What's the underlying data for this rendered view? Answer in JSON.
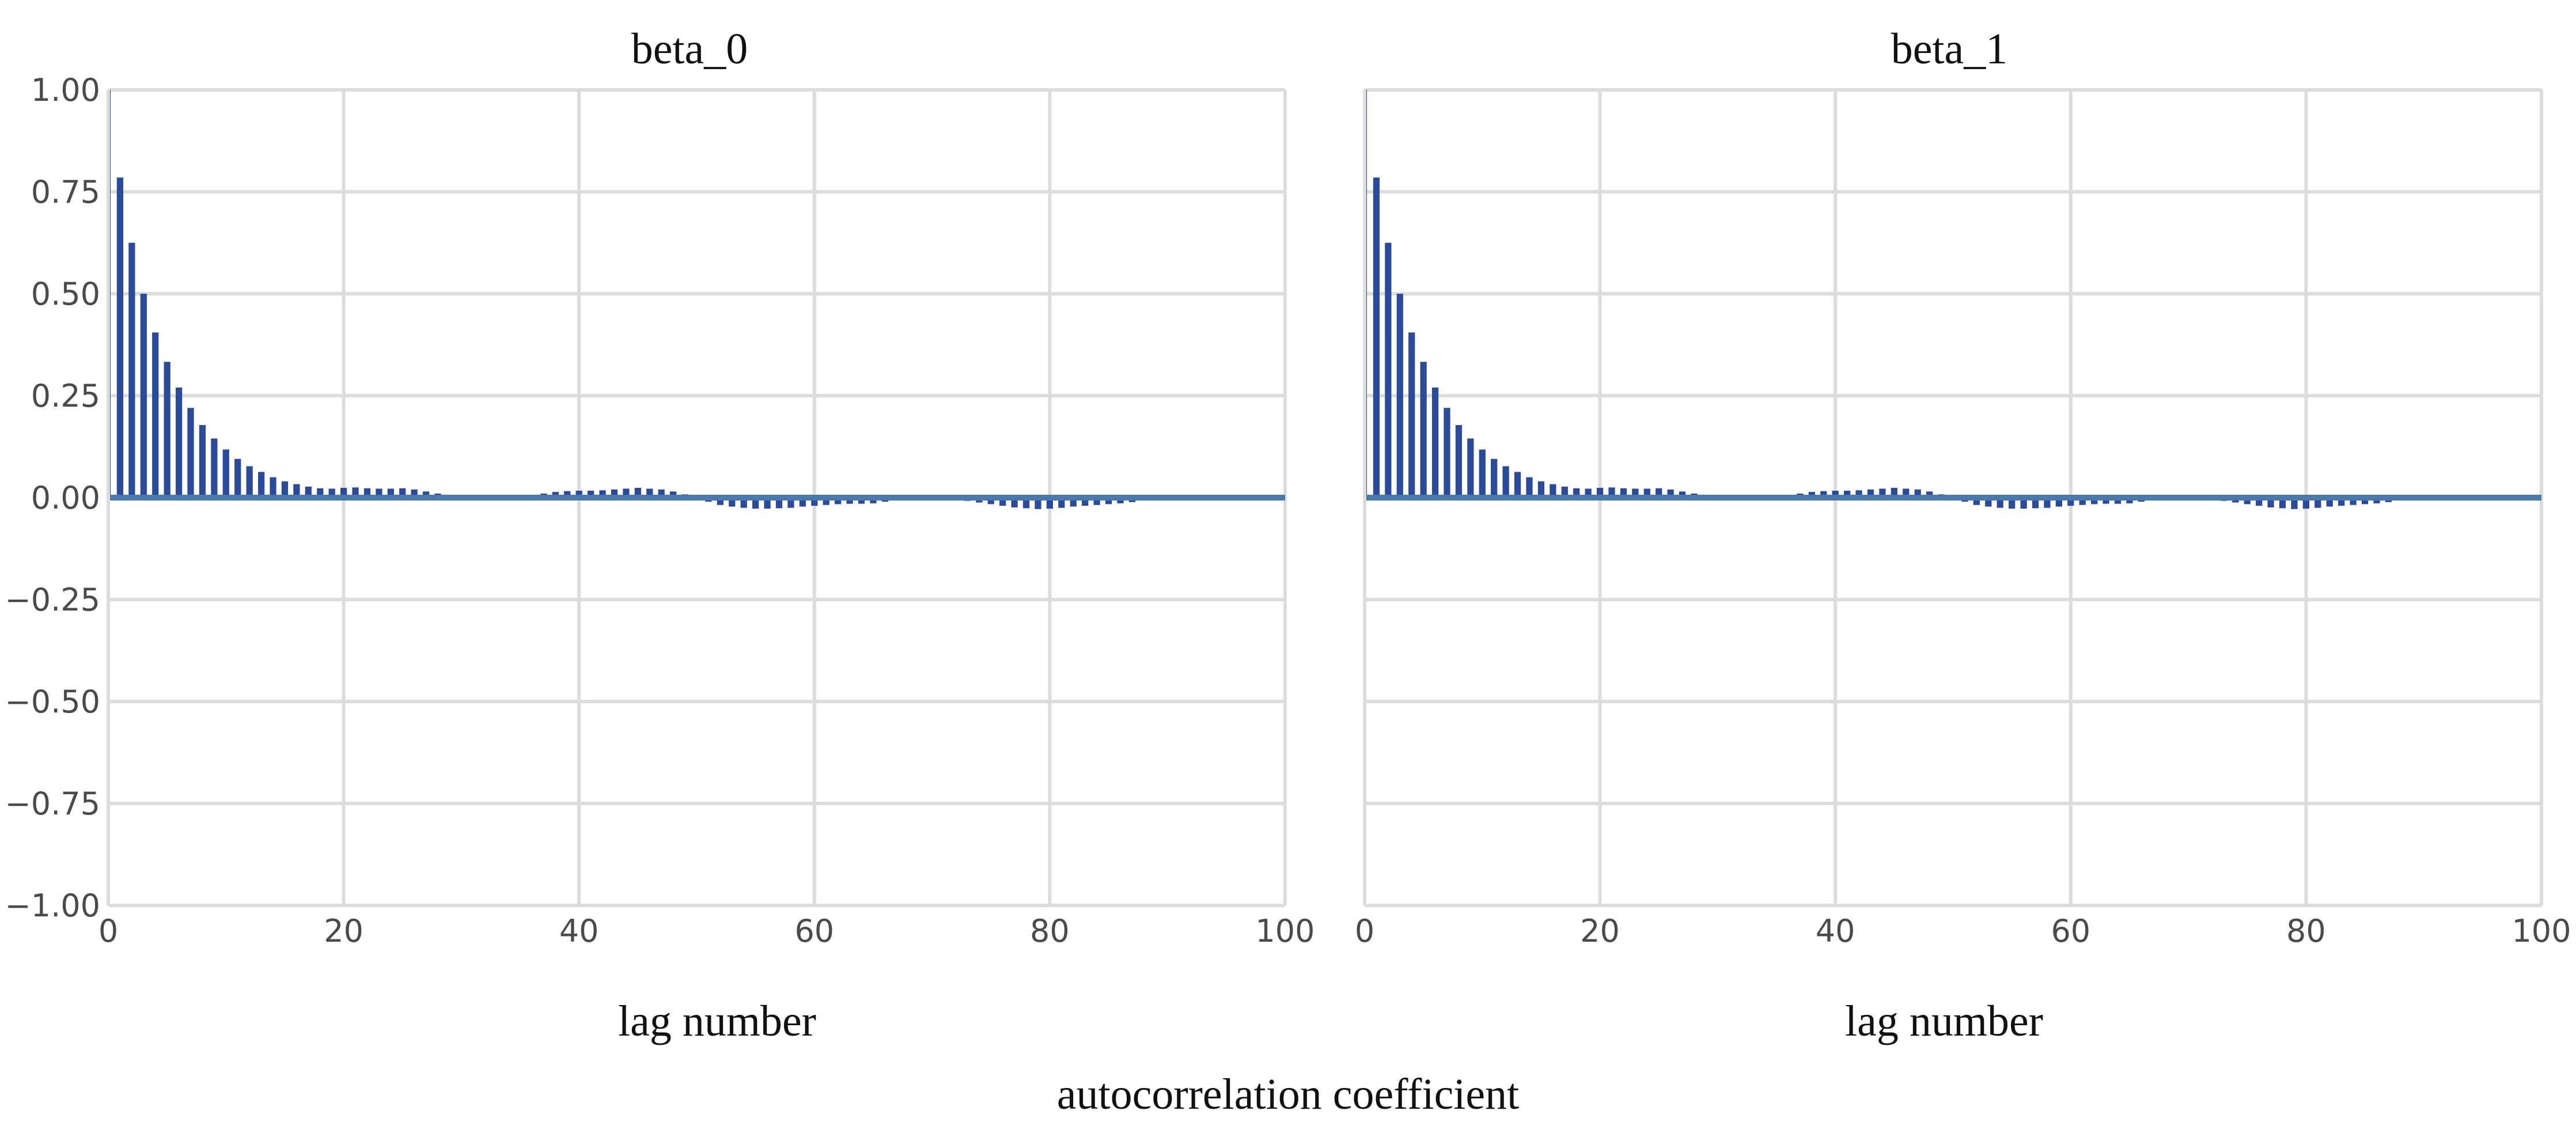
{
  "figure": {
    "xlabel": "autocorrelation coefficient"
  },
  "chart_data": [
    {
      "type": "bar",
      "title": "beta_0",
      "xlabel": "lag number",
      "ylabel": "",
      "xlim": [
        0,
        100
      ],
      "ylim": [
        -1.0,
        1.0
      ],
      "xticks": [
        "0",
        "20",
        "40",
        "60",
        "80",
        "100"
      ],
      "yticks": [
        "1.00",
        "0.75",
        "0.50",
        "0.25",
        "0.00",
        "−0.25",
        "−0.50",
        "−0.75",
        "−1.00"
      ],
      "grid": true,
      "legend": "none",
      "bar_color": "#2a4a9c",
      "zero_line_color": "#4a78ad",
      "lags": [
        0,
        1,
        2,
        3,
        4,
        5,
        6,
        7,
        8,
        9,
        10,
        11,
        12,
        13,
        14,
        15,
        16,
        17,
        18,
        19,
        20,
        21,
        22,
        23,
        24,
        25,
        26,
        27,
        28,
        29,
        30,
        31,
        32,
        33,
        34,
        35,
        36,
        37,
        38,
        39,
        40,
        41,
        42,
        43,
        44,
        45,
        46,
        47,
        48,
        49,
        50,
        51,
        52,
        53,
        54,
        55,
        56,
        57,
        58,
        59,
        60,
        61,
        62,
        63,
        64,
        65,
        66,
        67,
        68,
        69,
        70,
        71,
        72,
        73,
        74,
        75,
        76,
        77,
        78,
        79,
        80,
        81,
        82,
        83,
        84,
        85,
        86,
        87,
        88,
        89,
        90,
        91,
        92,
        93,
        94,
        95,
        96,
        97,
        98,
        99
      ],
      "values": [
        1.0,
        0.785,
        0.625,
        0.5,
        0.405,
        0.333,
        0.27,
        0.22,
        0.178,
        0.145,
        0.118,
        0.095,
        0.077,
        0.063,
        0.05,
        0.04,
        0.033,
        0.027,
        0.023,
        0.022,
        0.024,
        0.025,
        0.023,
        0.022,
        0.022,
        0.023,
        0.02,
        0.015,
        0.01,
        0.005,
        0.002,
        0.0,
        -0.002,
        -0.003,
        -0.002,
        0.0,
        0.005,
        0.01,
        0.014,
        0.016,
        0.017,
        0.017,
        0.018,
        0.02,
        0.022,
        0.024,
        0.022,
        0.02,
        0.015,
        0.008,
        0.0,
        -0.01,
        -0.018,
        -0.022,
        -0.025,
        -0.027,
        -0.027,
        -0.026,
        -0.025,
        -0.022,
        -0.02,
        -0.018,
        -0.016,
        -0.015,
        -0.015,
        -0.014,
        -0.01,
        -0.006,
        -0.003,
        0.0,
        0.0,
        -0.002,
        -0.005,
        -0.008,
        -0.012,
        -0.016,
        -0.02,
        -0.024,
        -0.026,
        -0.028,
        -0.027,
        -0.025,
        -0.022,
        -0.02,
        -0.018,
        -0.016,
        -0.014,
        -0.011,
        -0.006,
        -0.002,
        0.0,
        0.0,
        0.0,
        0.0,
        0.0,
        0.0,
        0.0,
        0.0,
        0.0,
        0.0
      ]
    },
    {
      "type": "bar",
      "title": "beta_1",
      "xlabel": "lag number",
      "ylabel": "",
      "xlim": [
        0,
        100
      ],
      "ylim": [
        -1.0,
        1.0
      ],
      "xticks": [
        "0",
        "20",
        "40",
        "60",
        "80",
        "100"
      ],
      "yticks": [
        "1.00",
        "0.75",
        "0.50",
        "0.25",
        "0.00",
        "−0.25",
        "−0.50",
        "−0.75",
        "−1.00"
      ],
      "grid": true,
      "legend": "none",
      "bar_color": "#2a4a9c",
      "zero_line_color": "#4a78ad",
      "lags": [
        0,
        1,
        2,
        3,
        4,
        5,
        6,
        7,
        8,
        9,
        10,
        11,
        12,
        13,
        14,
        15,
        16,
        17,
        18,
        19,
        20,
        21,
        22,
        23,
        24,
        25,
        26,
        27,
        28,
        29,
        30,
        31,
        32,
        33,
        34,
        35,
        36,
        37,
        38,
        39,
        40,
        41,
        42,
        43,
        44,
        45,
        46,
        47,
        48,
        49,
        50,
        51,
        52,
        53,
        54,
        55,
        56,
        57,
        58,
        59,
        60,
        61,
        62,
        63,
        64,
        65,
        66,
        67,
        68,
        69,
        70,
        71,
        72,
        73,
        74,
        75,
        76,
        77,
        78,
        79,
        80,
        81,
        82,
        83,
        84,
        85,
        86,
        87,
        88,
        89,
        90,
        91,
        92,
        93,
        94,
        95,
        96,
        97,
        98,
        99
      ],
      "values": [
        1.0,
        0.785,
        0.625,
        0.5,
        0.405,
        0.333,
        0.27,
        0.22,
        0.178,
        0.145,
        0.118,
        0.095,
        0.077,
        0.063,
        0.05,
        0.04,
        0.033,
        0.027,
        0.023,
        0.022,
        0.024,
        0.025,
        0.023,
        0.022,
        0.022,
        0.023,
        0.02,
        0.015,
        0.01,
        0.005,
        0.002,
        0.0,
        -0.002,
        -0.003,
        -0.002,
        0.0,
        0.005,
        0.01,
        0.014,
        0.016,
        0.017,
        0.017,
        0.018,
        0.02,
        0.022,
        0.024,
        0.022,
        0.02,
        0.015,
        0.008,
        0.0,
        -0.01,
        -0.018,
        -0.022,
        -0.025,
        -0.027,
        -0.027,
        -0.026,
        -0.025,
        -0.022,
        -0.02,
        -0.018,
        -0.016,
        -0.015,
        -0.015,
        -0.014,
        -0.01,
        -0.006,
        -0.003,
        0.0,
        0.0,
        -0.002,
        -0.005,
        -0.008,
        -0.012,
        -0.016,
        -0.02,
        -0.024,
        -0.026,
        -0.028,
        -0.027,
        -0.025,
        -0.022,
        -0.02,
        -0.018,
        -0.016,
        -0.014,
        -0.011,
        -0.006,
        -0.002,
        0.0,
        0.0,
        0.0,
        0.0,
        0.0,
        0.0,
        0.0,
        0.0,
        0.0,
        0.0
      ]
    }
  ]
}
